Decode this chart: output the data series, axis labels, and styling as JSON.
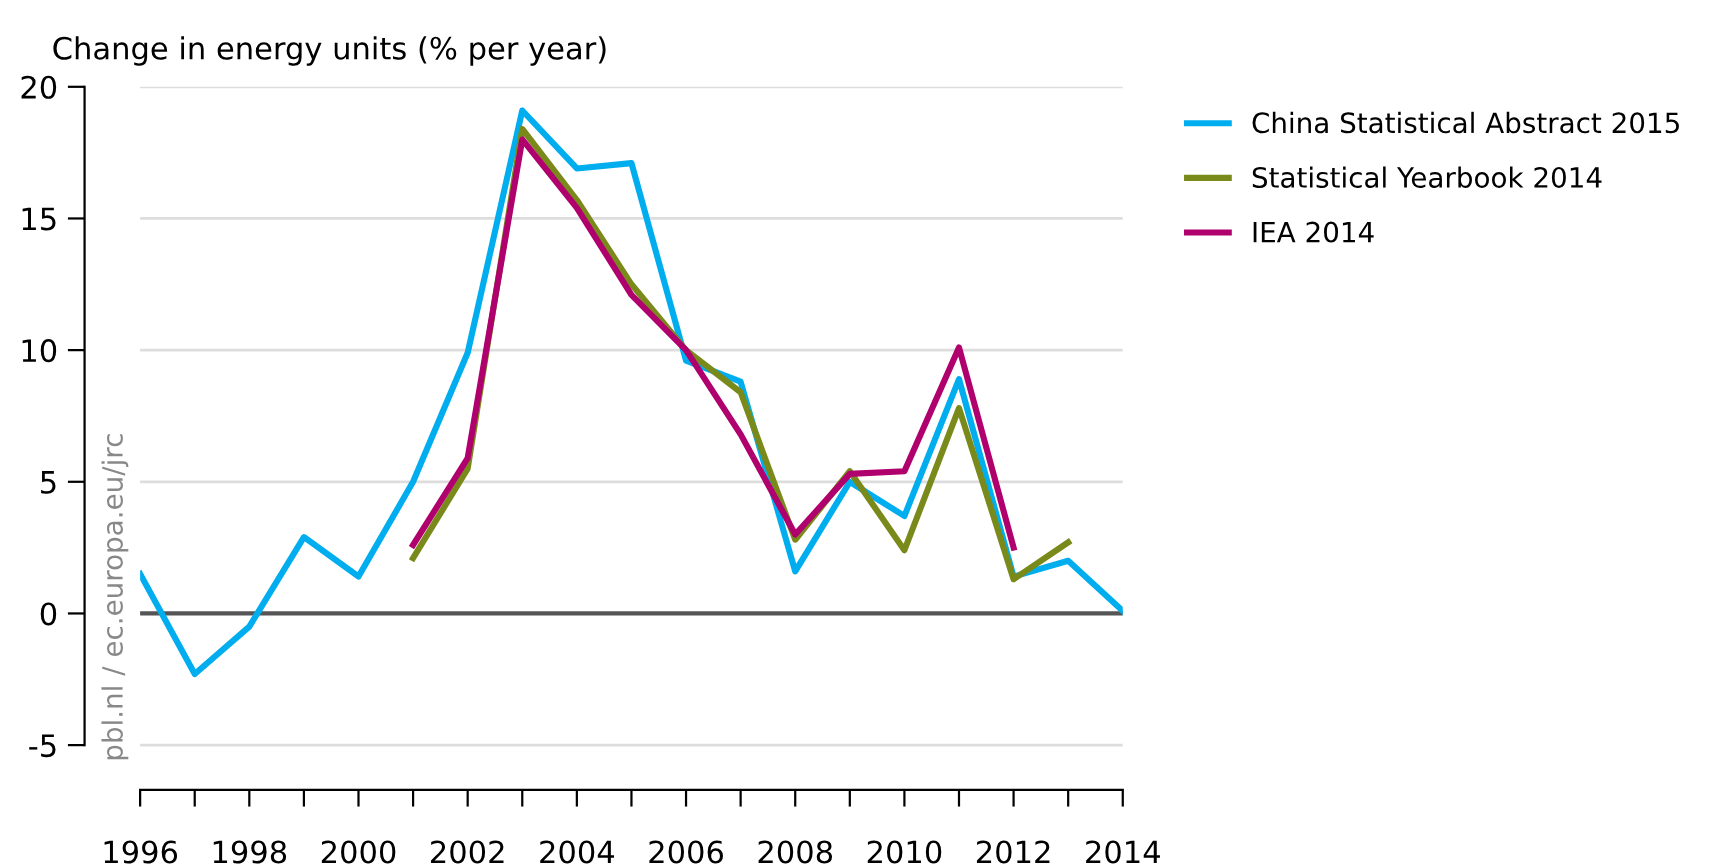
{
  "chart_data": {
    "type": "line",
    "ylabel": "Change in energy units (% per year)",
    "x": [
      1996,
      1997,
      1998,
      1999,
      2000,
      2001,
      2002,
      2003,
      2004,
      2005,
      2006,
      2007,
      2008,
      2009,
      2010,
      2011,
      2012,
      2013,
      2014
    ],
    "series": [
      {
        "name": "China Statistical Abstract 2015",
        "color": "#00aeef",
        "values": [
          1.5,
          -2.3,
          -0.5,
          2.9,
          1.4,
          5.0,
          9.9,
          19.1,
          16.9,
          17.1,
          9.6,
          8.8,
          1.6,
          5.0,
          3.7,
          8.9,
          1.4,
          2.0,
          0.1
        ]
      },
      {
        "name": "Statistical Yearbook 2014",
        "color": "#7a8a1a",
        "values": [
          null,
          null,
          null,
          null,
          null,
          2.1,
          5.5,
          18.4,
          15.7,
          12.5,
          10.0,
          8.4,
          2.8,
          5.4,
          2.4,
          7.8,
          1.3,
          2.7,
          null
        ]
      },
      {
        "name": "IEA 2014",
        "color": "#b0006e",
        "values": [
          null,
          null,
          null,
          null,
          null,
          2.6,
          5.9,
          18.0,
          15.4,
          12.1,
          10.0,
          6.8,
          3.0,
          5.3,
          5.4,
          10.1,
          2.5,
          null,
          null
        ]
      }
    ],
    "xlim": [
      1996,
      2014
    ],
    "xticks": [
      1996,
      {
        "value": 1997,
        "label": null
      },
      1998,
      {
        "value": 1999,
        "label": null
      },
      2000,
      {
        "value": 2001,
        "label": null
      },
      2002,
      {
        "value": 2003,
        "label": null
      },
      2004,
      {
        "value": 2005,
        "label": null
      },
      2006,
      {
        "value": 2007,
        "label": null
      },
      2008,
      {
        "value": 2009,
        "label": null
      },
      2010,
      {
        "value": 2011,
        "label": null
      },
      2012,
      {
        "value": 2013,
        "label": null
      },
      2014
    ],
    "ylim": [
      -6.7,
      20
    ],
    "yticks": [
      -5,
      0,
      5,
      10,
      15,
      20
    ],
    "ref_lines": [
      {
        "axis": "y",
        "value": 0,
        "color": "#555555"
      }
    ],
    "grid": "y",
    "legend": "top right",
    "marker": "none",
    "line_style": "solid",
    "annotations": [
      "pbl.nl / ec.europa.eu/jrc"
    ]
  }
}
